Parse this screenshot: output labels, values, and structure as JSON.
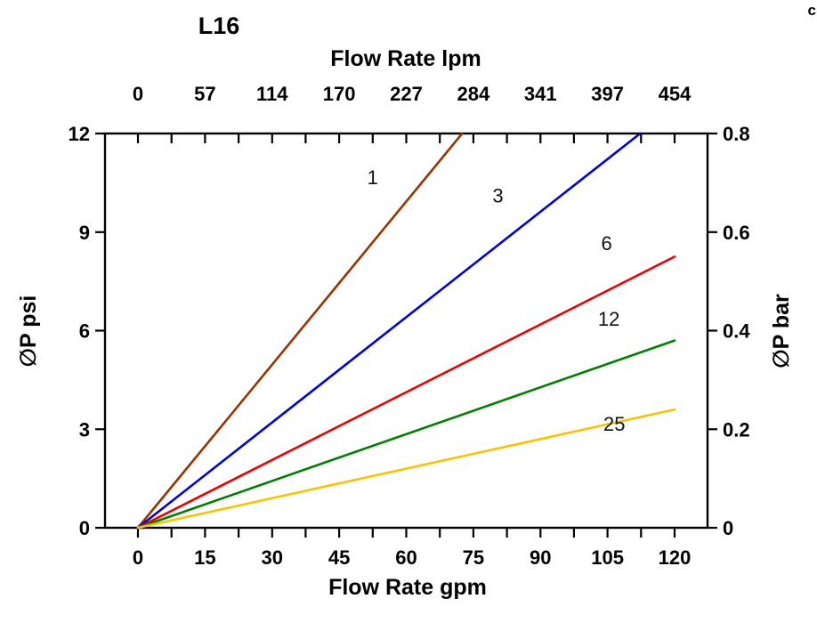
{
  "page": {
    "title": "L16",
    "corner_text": "c"
  },
  "chart_data": {
    "type": "line",
    "title": "L16",
    "grid": false,
    "legend": "inline-labels-on-curves",
    "axes": {
      "top": {
        "label": "Flow Rate lpm",
        "ticks": [
          "0",
          "57",
          "114",
          "170",
          "227",
          "284",
          "341",
          "397",
          "454"
        ]
      },
      "bottom": {
        "label": "Flow Rate gpm",
        "ticks": [
          "0",
          "15",
          "30",
          "45",
          "60",
          "75",
          "90",
          "105",
          "120"
        ]
      },
      "left": {
        "label": "∅P psi",
        "ticks": [
          "0",
          "3",
          "6",
          "9",
          "12"
        ],
        "range": [
          0,
          12
        ]
      },
      "right": {
        "label": "∅P bar",
        "ticks": [
          "0",
          "0.2",
          "0.4",
          "0.6",
          "0.8"
        ],
        "range": [
          0,
          0.8
        ]
      }
    },
    "x_data_range_gpm": [
      0,
      120
    ],
    "frame_x_range": [
      -7.4,
      127.4
    ],
    "series": [
      {
        "name": "1",
        "color": "#993300",
        "points": [
          [
            0,
            0
          ],
          [
            72.5,
            12
          ]
        ],
        "label_at": [
          52.5,
          10.45
        ]
      },
      {
        "name": "3",
        "color": "#0000dd",
        "points": [
          [
            0,
            0
          ],
          [
            112.3,
            12
          ]
        ],
        "label_at": [
          80.5,
          9.9
        ]
      },
      {
        "name": "6",
        "color": "#ee0000",
        "points": [
          [
            0,
            0
          ],
          [
            120,
            8.25
          ]
        ],
        "label_at": [
          104.8,
          8.45
        ]
      },
      {
        "name": "12",
        "color": "#008000",
        "points": [
          [
            0,
            0
          ],
          [
            120,
            5.7
          ]
        ],
        "label_at": [
          105.3,
          6.15
        ]
      },
      {
        "name": "25",
        "color": "#fcc200",
        "points": [
          [
            0,
            0
          ],
          [
            120,
            3.6
          ]
        ],
        "label_at": [
          106.5,
          2.95
        ]
      }
    ]
  }
}
